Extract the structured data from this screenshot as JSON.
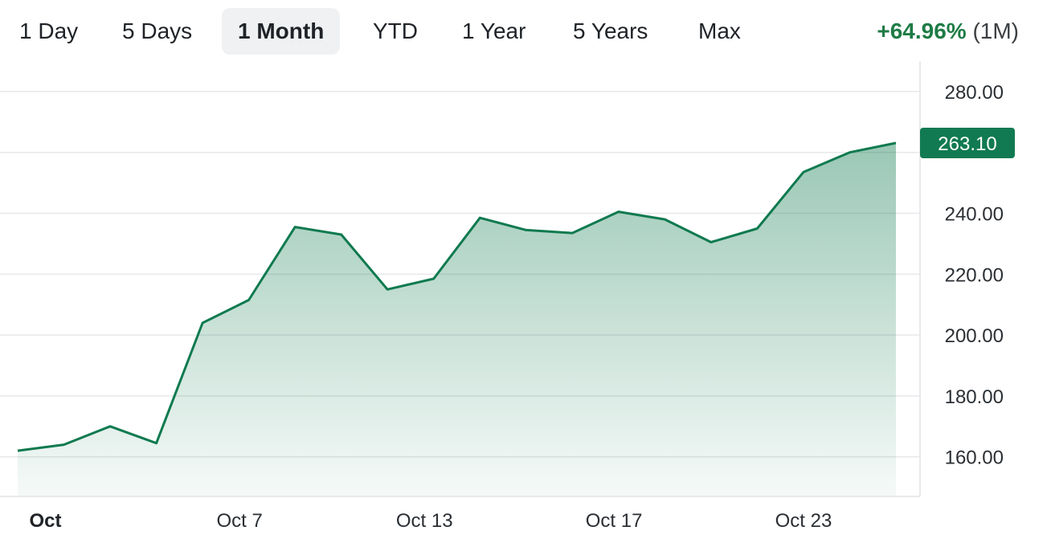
{
  "ranges": [
    {
      "label": "1 Day"
    },
    {
      "label": "5 Days"
    },
    {
      "label": "1 Month",
      "active": true
    },
    {
      "label": "YTD"
    },
    {
      "label": "1 Year"
    },
    {
      "label": "5 Years"
    },
    {
      "label": "Max"
    }
  ],
  "change": {
    "percent": "+64.96%",
    "period": "(1M)"
  },
  "colors": {
    "line": "#0f7a4f",
    "fill_top": "#0f7a4f",
    "positive": "#1e7b45",
    "tag_bg": "#117a52"
  },
  "chart_data": {
    "type": "area",
    "title": "",
    "xlabel": "",
    "ylabel": "",
    "x": [
      "Oct 1",
      "Oct 2",
      "Oct 3",
      "Oct 4",
      "Oct 7",
      "Oct 8",
      "Oct 9",
      "Oct 10",
      "Oct 11",
      "Oct 14",
      "Oct 15",
      "Oct 16",
      "Oct 17",
      "Oct 18",
      "Oct 21",
      "Oct 22",
      "Oct 23",
      "Oct 24",
      "Oct 25",
      "Oct 28"
    ],
    "values": [
      162.0,
      164.0,
      170.0,
      164.5,
      204.0,
      211.5,
      235.5,
      233.0,
      215.0,
      218.5,
      238.5,
      234.5,
      233.5,
      240.5,
      238.0,
      230.5,
      235.0,
      253.5,
      260.0,
      263.1
    ],
    "x_tick_labels": [
      {
        "label": "Oct",
        "index": 0.6,
        "bold": true
      },
      {
        "label": "Oct 7",
        "index": 4.8
      },
      {
        "label": "Oct 13",
        "index": 8.8
      },
      {
        "label": "Oct 17",
        "index": 12.9
      },
      {
        "label": "Oct 23",
        "index": 17.0
      }
    ],
    "y_ticks": [
      160,
      180,
      200,
      220,
      240,
      260,
      280
    ],
    "y_tick_labels": [
      "160.00",
      "180.00",
      "200.00",
      "220.00",
      "240.00",
      "",
      "280.00"
    ],
    "ylim": [
      147,
      290
    ],
    "last_price_label": "263.10",
    "grid": true
  }
}
